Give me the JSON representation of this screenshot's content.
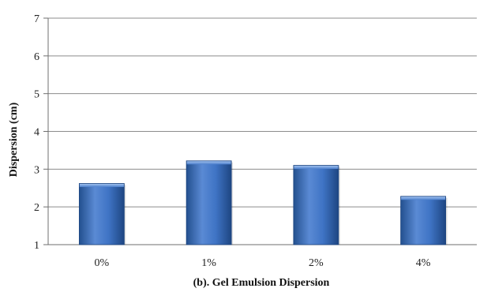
{
  "chart_data": {
    "type": "bar",
    "categories": [
      "0%",
      "1%",
      "2%",
      "4%"
    ],
    "values": [
      2.62,
      3.22,
      3.1,
      2.28
    ],
    "title": "",
    "xlabel": "(b). Gel Emulsion Dispersion",
    "ylabel": "Dispersion (cm)",
    "ylim": [
      1,
      7
    ],
    "yticks": [
      1,
      2,
      3,
      4,
      5,
      6,
      7
    ],
    "grid": true,
    "legend": "none",
    "colors": {
      "bar_light": "#7fa8e0",
      "bar_mid": "#3f74c5",
      "bar_dark": "#23508f",
      "grid": "#8c8c8c"
    }
  }
}
